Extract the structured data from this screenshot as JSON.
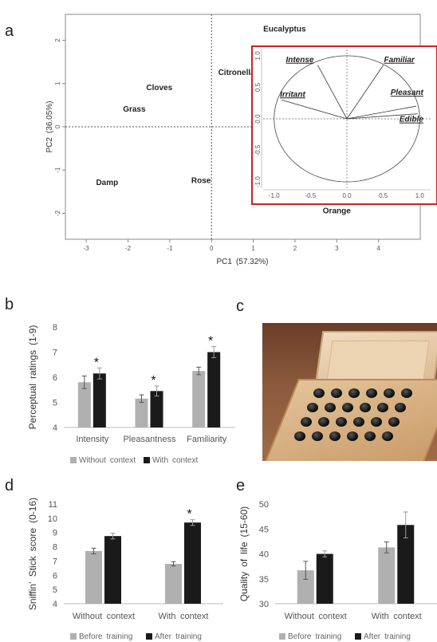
{
  "panels": {
    "a": "a",
    "b": "b",
    "c": "c",
    "d": "d",
    "e": "e"
  },
  "chart_data": [
    {
      "type": "scatter",
      "panel": "a",
      "xlabel": "PC1 (57.32%)",
      "ylabel": "PC2 (36.05%)",
      "xlim": [
        -3.5,
        5
      ],
      "ylim": [
        -2.6,
        2.6
      ],
      "xticks": [
        "-3",
        "-2",
        "-1",
        "0",
        "1",
        "2",
        "3",
        "4"
      ],
      "yticks": [
        "2",
        "1",
        "0",
        "-1",
        "-2"
      ],
      "points": [
        {
          "label": "Eucalyptus",
          "x": 1.75,
          "y": 2.2
        },
        {
          "label": "Citronella",
          "x": 0.6,
          "y": 1.2
        },
        {
          "label": "Cloves",
          "x": -1.25,
          "y": 0.85
        },
        {
          "label": "Grass",
          "x": -1.85,
          "y": 0.35
        },
        {
          "label": "Damp",
          "x": -2.5,
          "y": -1.35
        },
        {
          "label": "Rose",
          "x": -0.25,
          "y": -1.3
        },
        {
          "label": "Orange",
          "x": 3.0,
          "y": -2.0
        }
      ],
      "inset": {
        "type": "correlation-circle",
        "xticks": [
          "-1.0",
          "-0.5",
          "0.0",
          "0.5",
          "1.0"
        ],
        "yticks": [
          "1.0",
          "0.5",
          "0.0",
          "-0.5",
          "-1.0"
        ],
        "vectors": [
          {
            "label": "Intense",
            "x": -0.4,
            "y": 0.85
          },
          {
            "label": "Familiar",
            "x": 0.5,
            "y": 0.85
          },
          {
            "label": "Irritant",
            "x": -0.9,
            "y": 0.3
          },
          {
            "label": "Pleasant",
            "x": 0.95,
            "y": 0.2
          },
          {
            "label": "Edible",
            "x": 0.97,
            "y": 0.08
          }
        ]
      }
    },
    {
      "type": "bar",
      "panel": "b",
      "ylabel": "Perceptual ratings (1-9)",
      "ylim": [
        4,
        8
      ],
      "yticks": [
        "8",
        "7",
        "6",
        "5",
        "4"
      ],
      "categories": [
        "Intensity",
        "Pleasantness",
        "Familiarity"
      ],
      "series": [
        {
          "name": "Without context",
          "color": "#b0b0b0",
          "values": [
            5.8,
            5.15,
            6.25
          ],
          "errors": [
            0.25,
            0.15,
            0.15
          ]
        },
        {
          "name": "With context",
          "color": "#1a1a1a",
          "values": [
            6.15,
            5.45,
            7.0
          ],
          "errors": [
            0.22,
            0.2,
            0.22
          ]
        }
      ],
      "significance": [
        "*",
        "*",
        "*"
      ]
    },
    {
      "type": "bar",
      "panel": "d",
      "ylabel": "Sniffin’ Stick score (0-16)",
      "ylim": [
        4,
        11
      ],
      "yticks": [
        "11",
        "10",
        "9",
        "8",
        "7",
        "6",
        "5",
        "4"
      ],
      "categories": [
        "Without context",
        "With context"
      ],
      "series": [
        {
          "name": "Before training",
          "color": "#b0b0b0",
          "values": [
            7.7,
            6.8
          ],
          "errors": [
            0.2,
            0.15
          ]
        },
        {
          "name": "After training",
          "color": "#1a1a1a",
          "values": [
            8.75,
            9.7
          ],
          "errors": [
            0.2,
            0.2
          ]
        }
      ],
      "significance": [
        "",
        "*"
      ]
    },
    {
      "type": "bar",
      "panel": "e",
      "ylabel": "Quality of life (15-60)",
      "ylim": [
        30,
        50
      ],
      "yticks": [
        "50",
        "45",
        "40",
        "35",
        "30"
      ],
      "categories": [
        "Without context",
        "With context"
      ],
      "series": [
        {
          "name": "Before training",
          "color": "#b0b0b0",
          "values": [
            36.7,
            41.3
          ],
          "errors": [
            1.8,
            1.1
          ]
        },
        {
          "name": "After training",
          "color": "#1a1a1a",
          "values": [
            40.0,
            45.8
          ],
          "errors": [
            0.6,
            2.6
          ]
        }
      ],
      "significance": [
        "",
        ""
      ]
    }
  ],
  "photo": {
    "icon": "sniffin-sticks-box-photo"
  }
}
